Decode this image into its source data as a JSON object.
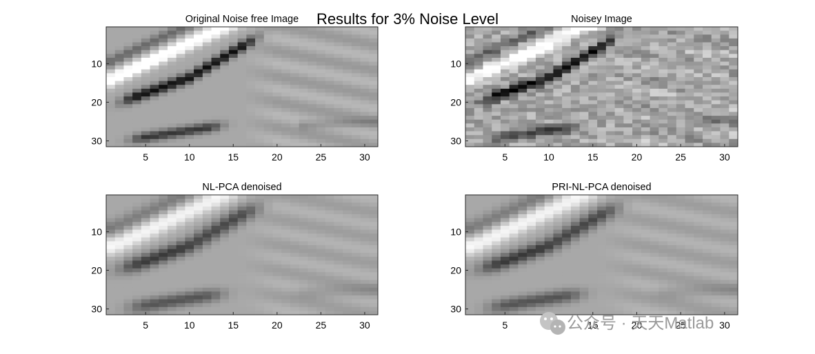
{
  "figure": {
    "title": "Results for 3% Noise Level",
    "watermark": "公众号 · 天天Matlab"
  },
  "chart_data": [
    {
      "type": "heatmap",
      "title": "Original Noise free Image",
      "colormap": "gray",
      "xlim": [
        0.5,
        31.5
      ],
      "ylim": [
        0.5,
        31.5
      ],
      "y_reversed": true,
      "xticks": [
        5,
        10,
        15,
        20,
        25,
        30
      ],
      "yticks": [
        10,
        20,
        30
      ],
      "noise": 0,
      "blur": 0
    },
    {
      "type": "heatmap",
      "title": "Noisey Image",
      "colormap": "gray",
      "xlim": [
        0.5,
        31.5
      ],
      "ylim": [
        0.5,
        31.5
      ],
      "y_reversed": true,
      "xticks": [
        5,
        10,
        15,
        20,
        25,
        30
      ],
      "yticks": [
        10,
        20,
        30
      ],
      "noise": 0.13,
      "blur": 0
    },
    {
      "type": "heatmap",
      "title": "NL-PCA denoised",
      "colormap": "gray",
      "xlim": [
        0.5,
        31.5
      ],
      "ylim": [
        0.5,
        31.5
      ],
      "y_reversed": true,
      "xticks": [
        5,
        10,
        15,
        20,
        25,
        30
      ],
      "yticks": [
        10,
        20,
        30
      ],
      "noise": 0,
      "blur": 0.35
    },
    {
      "type": "heatmap",
      "title": "PRI-NL-PCA denoised",
      "colormap": "gray",
      "xlim": [
        0.5,
        31.5
      ],
      "ylim": [
        0.5,
        31.5
      ],
      "y_reversed": true,
      "xticks": [
        5,
        10,
        15,
        20,
        25,
        30
      ],
      "yticks": [
        10,
        20,
        30
      ],
      "noise": 0,
      "blur": 0.3
    }
  ]
}
